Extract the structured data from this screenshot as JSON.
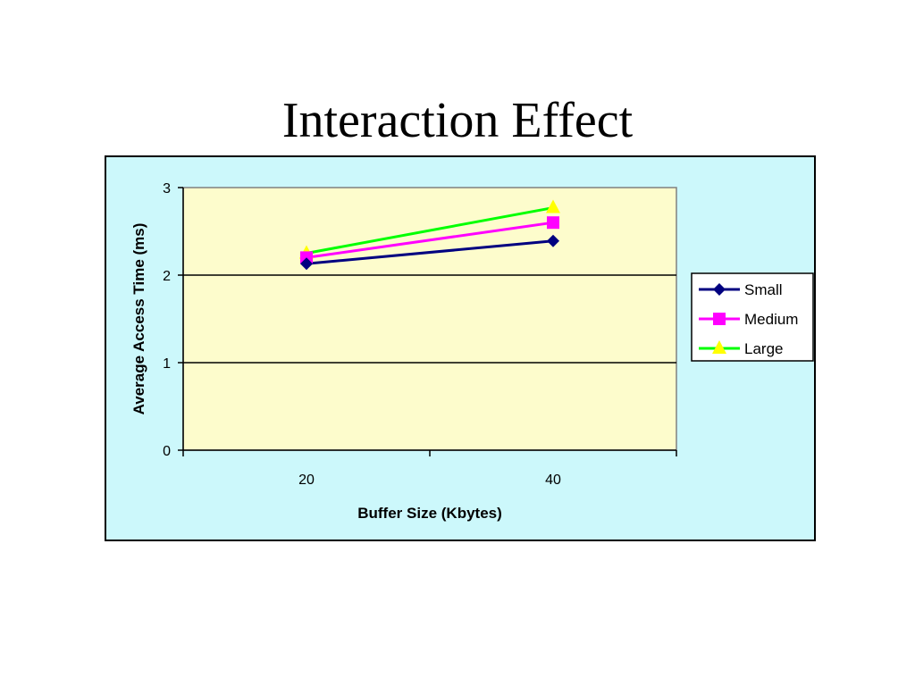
{
  "slide": {
    "title": "Interaction Effect"
  },
  "colors": {
    "frame_background": "#ccf8fb",
    "plot_background": "#fdfccc",
    "gridline": "#000000"
  },
  "chart_data": {
    "type": "line",
    "title": "",
    "xlabel": "Buffer Size (Kbytes)",
    "ylabel": "Average Access Time (ms)",
    "categories": [
      "20",
      "40"
    ],
    "ylim": [
      0,
      3
    ],
    "yticks": [
      0,
      1,
      2,
      3
    ],
    "grid": true,
    "legend_position": "right",
    "series": [
      {
        "name": "Small",
        "values": [
          2.13,
          2.39
        ],
        "color": "#000080",
        "marker": "diamond"
      },
      {
        "name": "Medium",
        "values": [
          2.2,
          2.6
        ],
        "color": "#ff00ff",
        "marker": "square"
      },
      {
        "name": "Large",
        "values": [
          2.25,
          2.77
        ],
        "color": "#00ff00",
        "marker_color": "#ffff00",
        "marker": "triangle"
      }
    ]
  }
}
